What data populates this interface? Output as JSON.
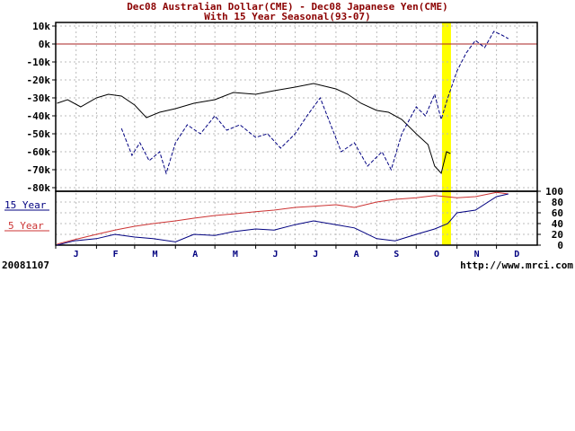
{
  "chart_data": [
    {
      "type": "line",
      "title": "Dec08 Australian Dollar(CME) - Dec08 Japanese Yen(CME)",
      "subtitle": "With 15 Year Seasonal(93-07)",
      "y_tick_labels": [
        "10k",
        "0k",
        "-10k",
        "-20k",
        "-30k",
        "-40k",
        "-50k",
        "-60k",
        "-70k",
        "-80k"
      ],
      "ylim": [
        -82000,
        12000
      ],
      "x_tick_labels": [
        "J",
        "F",
        "M",
        "A",
        "M",
        "J",
        "J",
        "A",
        "S",
        "O",
        "N",
        "D"
      ],
      "zero_line_color": "#aa2222",
      "highlight_color": "#ffff00",
      "highlight_date": "2008-10-24",
      "series": [
        {
          "style": "solid",
          "color": "#000000",
          "dates": [
            "2008-01-02",
            "2008-01-10",
            "2008-01-20",
            "2008-02-01",
            "2008-02-10",
            "2008-02-20",
            "2008-03-01",
            "2008-03-10",
            "2008-03-20",
            "2008-04-01",
            "2008-04-15",
            "2008-05-01",
            "2008-05-15",
            "2008-06-01",
            "2008-06-15",
            "2008-07-01",
            "2008-07-15",
            "2008-08-01",
            "2008-08-10",
            "2008-08-20",
            "2008-09-01",
            "2008-09-10",
            "2008-09-20",
            "2008-10-01",
            "2008-10-10",
            "2008-10-15",
            "2008-10-20",
            "2008-10-24",
            "2008-10-27"
          ],
          "values": [
            -33000,
            -31000,
            -35000,
            -30000,
            -28000,
            -29000,
            -34000,
            -41000,
            -38000,
            -36000,
            -33000,
            -31000,
            -27000,
            -28000,
            -26000,
            -24000,
            -22000,
            -25000,
            -28000,
            -33000,
            -37000,
            -38000,
            -42000,
            -50000,
            -56000,
            -68000,
            -72000,
            -60000,
            -61000
          ]
        },
        {
          "style": "dashed",
          "color": "#000080",
          "dates": [
            "2008-02-20",
            "2008-02-28",
            "2008-03-05",
            "2008-03-12",
            "2008-03-20",
            "2008-03-25",
            "2008-04-01",
            "2008-04-10",
            "2008-04-20",
            "2008-05-01",
            "2008-05-10",
            "2008-05-20",
            "2008-06-01",
            "2008-06-10",
            "2008-06-20",
            "2008-07-01",
            "2008-07-10",
            "2008-07-20",
            "2008-07-28",
            "2008-08-05",
            "2008-08-15",
            "2008-08-25",
            "2008-09-05",
            "2008-09-12",
            "2008-09-20",
            "2008-10-01",
            "2008-10-08",
            "2008-10-15",
            "2008-10-20",
            "2008-10-25",
            "2008-11-01",
            "2008-11-08",
            "2008-11-15",
            "2008-11-22",
            "2008-11-29",
            "2008-12-05",
            "2008-12-10"
          ],
          "values": [
            -47000,
            -62000,
            -55000,
            -65000,
            -60000,
            -72000,
            -55000,
            -45000,
            -50000,
            -40000,
            -48000,
            -45000,
            -52000,
            -50000,
            -58000,
            -50000,
            -40000,
            -30000,
            -45000,
            -60000,
            -55000,
            -68000,
            -60000,
            -70000,
            -50000,
            -35000,
            -40000,
            -28000,
            -42000,
            -30000,
            -15000,
            -5000,
            2000,
            -2000,
            7000,
            5000,
            3000
          ]
        }
      ]
    },
    {
      "type": "line",
      "ylim": [
        0,
        100
      ],
      "y_tick_labels": [
        "100",
        "80",
        "60",
        "40",
        "20",
        "0"
      ],
      "series": [
        {
          "name": "15 Year",
          "color": "#000080",
          "dates": [
            "2008-01-02",
            "2008-01-15",
            "2008-02-01",
            "2008-02-15",
            "2008-03-01",
            "2008-03-15",
            "2008-04-01",
            "2008-04-15",
            "2008-05-01",
            "2008-05-15",
            "2008-06-01",
            "2008-06-15",
            "2008-07-01",
            "2008-07-15",
            "2008-08-01",
            "2008-08-15",
            "2008-09-01",
            "2008-09-15",
            "2008-10-01",
            "2008-10-15",
            "2008-10-25",
            "2008-11-01",
            "2008-11-15",
            "2008-12-01",
            "2008-12-10"
          ],
          "values": [
            0,
            8,
            12,
            20,
            15,
            12,
            6,
            20,
            18,
            25,
            30,
            28,
            38,
            45,
            38,
            32,
            12,
            8,
            20,
            30,
            40,
            60,
            65,
            90,
            95
          ]
        },
        {
          "name": "5 Year",
          "color": "#cc3333",
          "dates": [
            "2008-01-02",
            "2008-01-15",
            "2008-02-01",
            "2008-02-15",
            "2008-03-01",
            "2008-03-15",
            "2008-04-01",
            "2008-04-15",
            "2008-05-01",
            "2008-05-15",
            "2008-06-01",
            "2008-06-15",
            "2008-07-01",
            "2008-07-15",
            "2008-08-01",
            "2008-08-15",
            "2008-09-01",
            "2008-09-15",
            "2008-10-01",
            "2008-10-15",
            "2008-11-01",
            "2008-11-15",
            "2008-12-01",
            "2008-12-10"
          ],
          "values": [
            2,
            10,
            20,
            28,
            35,
            40,
            45,
            50,
            55,
            58,
            62,
            65,
            70,
            72,
            75,
            70,
            80,
            85,
            88,
            92,
            88,
            90,
            98,
            95
          ]
        }
      ]
    }
  ],
  "legend": {
    "fifteen_year": "15 Year",
    "five_year": "5 Year"
  },
  "footer": {
    "date_code": "20081107",
    "url": "http://www.mrci.com"
  }
}
